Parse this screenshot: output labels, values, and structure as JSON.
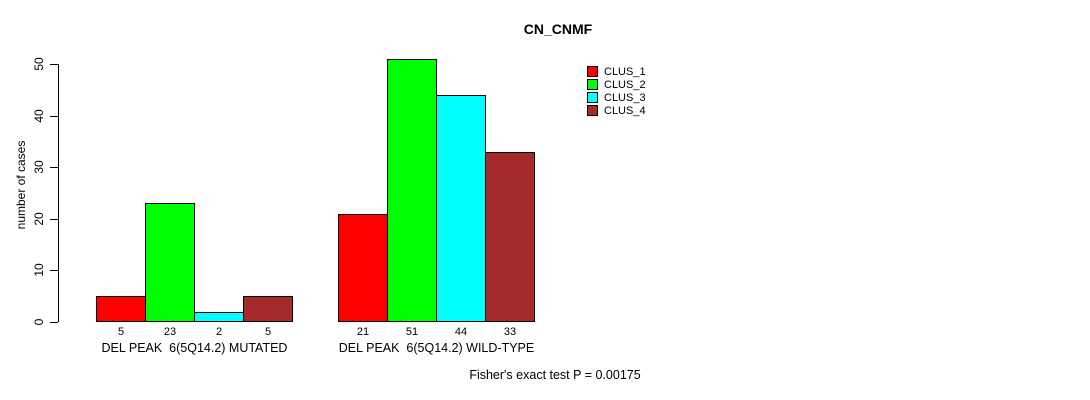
{
  "title": "CN_CNMF",
  "footer_note": "Fisher's exact test P = 0.00175",
  "colors": {
    "background": "#ffffff",
    "axis": "#000000",
    "text": "#000000"
  },
  "chart_data": {
    "type": "bar",
    "title": "CN_CNMF",
    "xlabel": "",
    "ylabel": "number of cases",
    "ylim": [
      0,
      50
    ],
    "yticks": [
      0,
      10,
      20,
      30,
      40,
      50
    ],
    "grid": false,
    "legend_position": "top-right",
    "bar_value_labels": true,
    "categories": [
      "DEL PEAK  6(5Q14.2) MUTATED",
      "DEL PEAK  6(5Q14.2) WILD-TYPE"
    ],
    "series": [
      {
        "name": "CLUS_1",
        "color": "#FF0000",
        "values": [
          5,
          21
        ]
      },
      {
        "name": "CLUS_2",
        "color": "#00FF00",
        "values": [
          23,
          51
        ]
      },
      {
        "name": "CLUS_3",
        "color": "#00FFFF",
        "values": [
          2,
          44
        ]
      },
      {
        "name": "CLUS_4",
        "color": "#A52A2A",
        "values": [
          5,
          33
        ]
      }
    ],
    "annotation": "Fisher's exact test P = 0.00175"
  }
}
